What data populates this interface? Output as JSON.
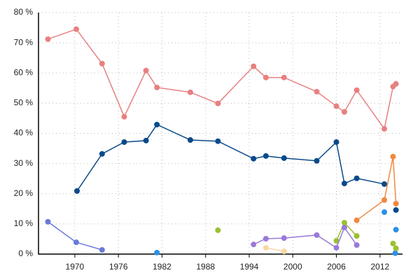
{
  "chart_data": {
    "type": "line",
    "xlim": [
      1965,
      2015.1
    ],
    "xticks": [
      1970,
      1976,
      1982,
      1988,
      1994,
      2000,
      2006,
      2012
    ],
    "ylim": [
      0,
      80
    ],
    "yticks": [
      {
        "value": 0,
        "label": "0 %"
      },
      {
        "value": 10,
        "label": "10 %"
      },
      {
        "value": 20,
        "label": "20 %"
      },
      {
        "value": 30,
        "label": "30 %"
      },
      {
        "value": 40,
        "label": "40 %"
      },
      {
        "value": 50,
        "label": "50 %"
      },
      {
        "value": 60,
        "label": "60 %"
      },
      {
        "value": 70,
        "label": "70 %"
      },
      {
        "value": 80,
        "label": "80 %"
      }
    ],
    "grid": true,
    "series": [
      {
        "color": "#e88080",
        "x": [
          1966.3,
          1970.2,
          1973.75,
          1976.8,
          1979.8,
          1981.3,
          1985.9,
          1989.7,
          1994.6,
          1996.3,
          1998.8,
          2003.3,
          2006,
          2007.1,
          2008.8,
          2012.6,
          2013.8,
          2014.2
        ],
        "values": [
          71.2,
          74.5,
          63.1,
          45.5,
          60.8,
          55.2,
          53.6,
          49.9,
          62.2,
          58.5,
          58.5,
          53.8,
          49,
          47.1,
          54.3,
          41.5,
          55.5,
          56.4
        ]
      },
      {
        "color": "#0a4a8a",
        "x": [
          1970.3,
          1973.75,
          1976.8,
          1979.8,
          1981.3,
          1985.9,
          1989.7,
          1994.6,
          1996.3,
          1998.8,
          2003.3,
          2006,
          2007.1,
          2008.8,
          2012.6,
          null,
          2014.2
        ],
        "values": [
          20.9,
          33.2,
          37.1,
          37.6,
          42.9,
          37.8,
          37.4,
          31.6,
          32.5,
          31.8,
          30.9,
          37.1,
          23.4,
          25.1,
          23.2,
          null,
          14.6
        ]
      },
      {
        "color": "#6a7ad8",
        "x": [
          1966.3,
          1970.2,
          1973.75
        ],
        "values": [
          10.7,
          3.9,
          1.4
        ]
      },
      {
        "color": "#2a90e8",
        "x": [
          1981.3,
          null,
          2012.6,
          null,
          2014.2,
          null,
          2014.1
        ],
        "values": [
          0.5,
          null,
          13.9,
          null,
          8.1,
          null,
          0.3
        ]
      },
      {
        "color": "#9ac030",
        "x": [
          1989.7,
          null,
          2006,
          2007.1,
          2008.8,
          null,
          2013.8,
          2014.2
        ],
        "values": [
          7.9,
          null,
          4.4,
          10.4,
          6,
          null,
          3.5,
          1.9
        ]
      },
      {
        "color": "#9a7ad8",
        "x": [
          1994.6,
          1996.3,
          1998.8,
          2003.3,
          2006,
          2007.1,
          2008.8
        ],
        "values": [
          3.2,
          5.1,
          5.3,
          6.3,
          2.1,
          8.8,
          3
        ]
      },
      {
        "color": "#f8d8a0",
        "x": [
          1996.3,
          1998.8
        ],
        "values": [
          2.1,
          0.9
        ]
      },
      {
        "color": "#f08840",
        "x": [
          2008.8,
          2012.6,
          2013.8,
          2014.2
        ],
        "values": [
          11.2,
          17.9,
          32.3,
          16.7
        ]
      }
    ]
  }
}
